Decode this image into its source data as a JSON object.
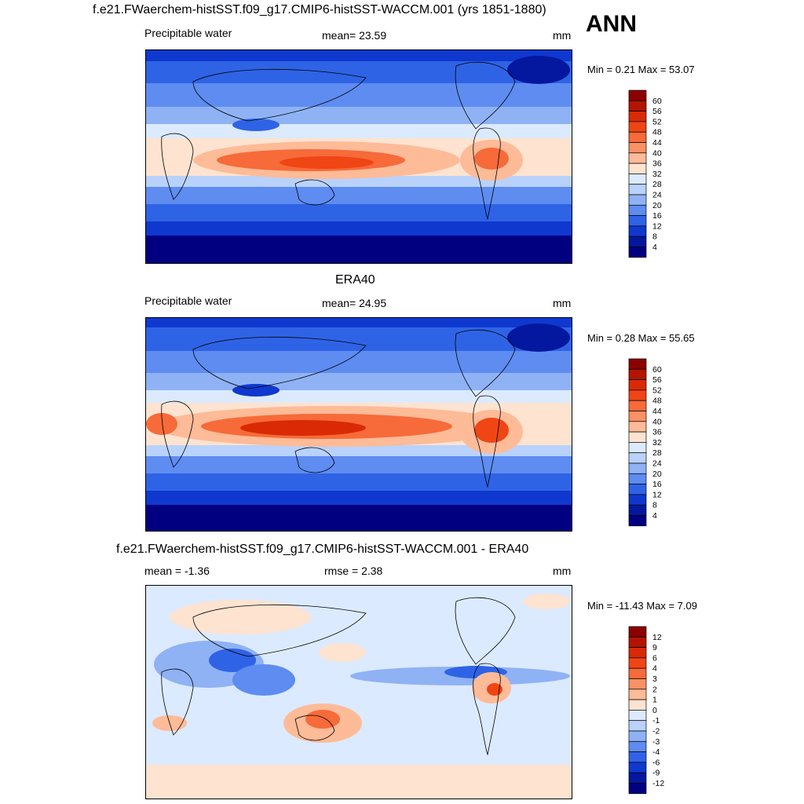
{
  "season": "ANN",
  "chart_data": [
    {
      "type": "heatmap",
      "title": "f.e21.FWaerchem-histSST.f09_g17.CMIP6-histSST-WACCM.001 (yrs 1851-1880)",
      "left_label": "Precipitable water",
      "center_label": "mean=  23.59",
      "units": "mm",
      "minmax": "Min =   0.21 Max =  53.07",
      "min": 0.21,
      "max": 53.07,
      "mean": 23.59,
      "legend_levels": [
        "60",
        "56",
        "52",
        "48",
        "44",
        "40",
        "36",
        "32",
        "28",
        "24",
        "20",
        "16",
        "12",
        "8",
        "4"
      ],
      "legend_colors": [
        "#8b0000",
        "#b31400",
        "#d92a05",
        "#f04515",
        "#f76a3a",
        "#fb9265",
        "#fdbb98",
        "#fde3d0",
        "#dceaff",
        "#b9d2fb",
        "#8fb2f5",
        "#5e8cf0",
        "#2f63e6",
        "#0f38cf",
        "#04179f",
        "#000080"
      ]
    },
    {
      "type": "heatmap",
      "title": "ERA40",
      "left_label": "Precipitable water",
      "center_label": "mean=  24.95",
      "units": "mm",
      "minmax": "Min =   0.28 Max =  55.65",
      "min": 0.28,
      "max": 55.65,
      "mean": 24.95,
      "legend_levels": [
        "60",
        "56",
        "52",
        "48",
        "44",
        "40",
        "36",
        "32",
        "28",
        "24",
        "20",
        "16",
        "12",
        "8",
        "4"
      ],
      "legend_colors": [
        "#8b0000",
        "#b31400",
        "#d92a05",
        "#f04515",
        "#f76a3a",
        "#fb9265",
        "#fdbb98",
        "#fde3d0",
        "#dceaff",
        "#b9d2fb",
        "#8fb2f5",
        "#5e8cf0",
        "#2f63e6",
        "#0f38cf",
        "#04179f",
        "#000080"
      ]
    },
    {
      "type": "heatmap",
      "title": "f.e21.FWaerchem-histSST.f09_g17.CMIP6-histSST-WACCM.001 - ERA40",
      "left_label": "mean =  -1.36",
      "center_label": "rmse =   2.38",
      "units": "mm",
      "minmax": "Min = -11.43 Max =   7.09",
      "min": -11.43,
      "max": 7.09,
      "mean": -1.36,
      "rmse": 2.38,
      "legend_levels": [
        "12",
        "9",
        "6",
        "4",
        "3",
        "2",
        "1",
        "0",
        "-1",
        "-2",
        "-3",
        "-4",
        "-6",
        "-9",
        "-12"
      ],
      "legend_colors": [
        "#8b0000",
        "#b31400",
        "#d92a05",
        "#f04515",
        "#f76a3a",
        "#fb9265",
        "#fdbb98",
        "#fde3d0",
        "#dceaff",
        "#b9d2fb",
        "#8fb2f5",
        "#5e8cf0",
        "#2f63e6",
        "#0f38cf",
        "#04179f",
        "#000080"
      ]
    }
  ]
}
